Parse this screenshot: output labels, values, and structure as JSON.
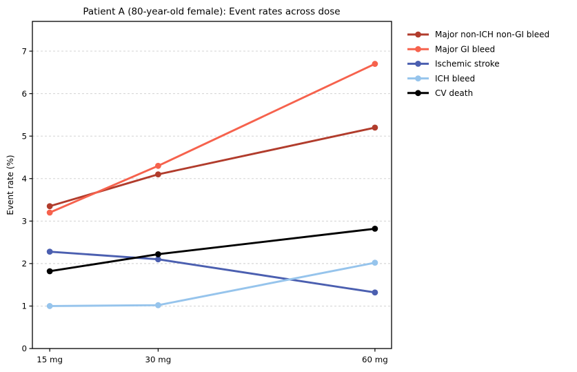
{
  "chart": {
    "title": "Patient A (80-year-old female): Event rates across dose",
    "ylabel": "Event rate (%)",
    "xlabel": ""
  },
  "chart_data": {
    "type": "line",
    "title": "Patient A (80-year-old female): Event rates across dose",
    "xlabel": "",
    "ylabel": "Event rate (%)",
    "x": [
      15,
      30,
      60
    ],
    "x_tick_labels": [
      "15 mg",
      "30 mg",
      "60 mg"
    ],
    "y_ticks": [
      0,
      1,
      2,
      3,
      4,
      5,
      6,
      7
    ],
    "xlim": [
      12.6,
      62.3
    ],
    "ylim": [
      0,
      7.7
    ],
    "grid": {
      "horizontal": true,
      "style": "dashed",
      "color": "#cccccc"
    },
    "legend": {
      "position": "outside-top-right",
      "frame": false
    },
    "axis_color": "#000000",
    "series": [
      {
        "name": "Major non-ICH non-GI bleed",
        "color": "#b13c2c",
        "values": [
          3.35,
          4.1,
          5.2
        ]
      },
      {
        "name": "Major GI bleed",
        "color": "#f6624d",
        "values": [
          3.2,
          4.3,
          6.7
        ]
      },
      {
        "name": "Ischemic stroke",
        "color": "#4b5fb0",
        "values": [
          2.28,
          2.1,
          1.32
        ]
      },
      {
        "name": "ICH bleed",
        "color": "#96c4ec",
        "values": [
          1.0,
          1.02,
          2.02
        ]
      },
      {
        "name": "CV death",
        "color": "#000000",
        "values": [
          1.82,
          2.22,
          2.82
        ]
      }
    ]
  }
}
